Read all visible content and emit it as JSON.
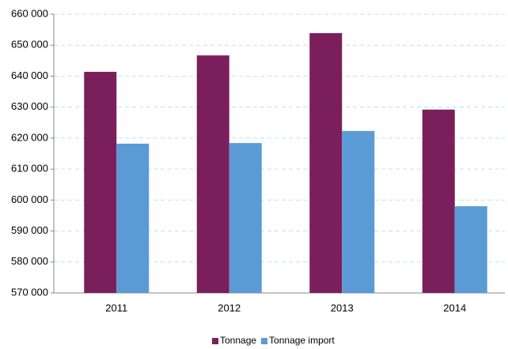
{
  "chart_data": {
    "type": "bar",
    "categories": [
      "2011",
      "2012",
      "2013",
      "2014"
    ],
    "series": [
      {
        "name": "Tonnage",
        "color": "#7b1f5c",
        "values": [
          641400,
          646700,
          653900,
          629200
        ]
      },
      {
        "name": "Tonnage import",
        "color": "#5b9bd5",
        "values": [
          618200,
          618400,
          622300,
          598000
        ]
      }
    ],
    "ylim": [
      570000,
      660000
    ],
    "yticks": [
      {
        "value": 570000,
        "label": "570 000"
      },
      {
        "value": 580000,
        "label": "580 000"
      },
      {
        "value": 590000,
        "label": "590 000"
      },
      {
        "value": 600000,
        "label": "600 000"
      },
      {
        "value": 610000,
        "label": "610 000"
      },
      {
        "value": 620000,
        "label": "620 000"
      },
      {
        "value": 630000,
        "label": "630 000"
      },
      {
        "value": 640000,
        "label": "640 000"
      },
      {
        "value": 650000,
        "label": "650 000"
      },
      {
        "value": 660000,
        "label": "660 000"
      }
    ],
    "grid": true,
    "legend": "bottom"
  }
}
